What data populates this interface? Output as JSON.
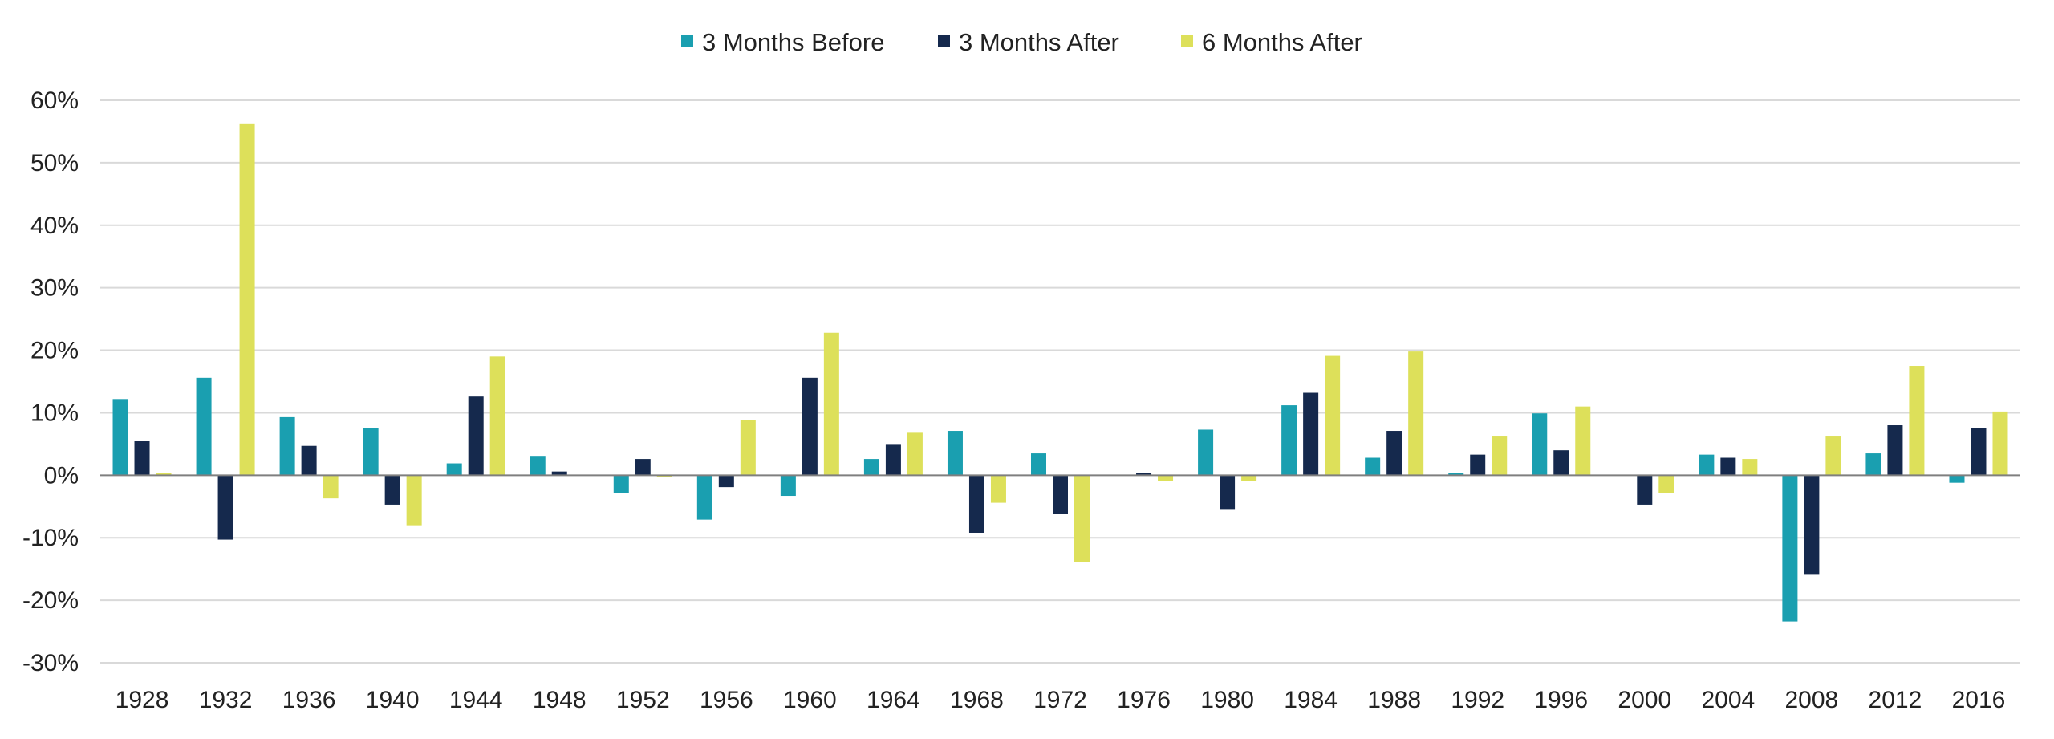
{
  "chart_data": {
    "type": "bar",
    "title": "",
    "xlabel": "",
    "ylabel": "",
    "categories": [
      "1928",
      "1932",
      "1936",
      "1940",
      "1944",
      "1948",
      "1952",
      "1956",
      "1960",
      "1964",
      "1968",
      "1972",
      "1976",
      "1980",
      "1984",
      "1988",
      "1992",
      "1996",
      "2000",
      "2004",
      "2008",
      "2012",
      "2016"
    ],
    "series": [
      {
        "name": "3 Months Before",
        "color": "#1a9fb0",
        "values": [
          12.2,
          15.6,
          9.3,
          7.6,
          1.9,
          3.1,
          -2.8,
          -7.1,
          -3.3,
          2.6,
          7.1,
          3.5,
          0.0,
          7.3,
          11.2,
          2.8,
          0.3,
          9.9,
          0.0,
          3.3,
          -23.4,
          3.5,
          -1.2
        ]
      },
      {
        "name": "3 Months After",
        "color": "#15294d",
        "values": [
          5.5,
          -10.3,
          4.7,
          -4.7,
          12.6,
          0.6,
          2.6,
          -1.9,
          15.6,
          5.0,
          -9.2,
          -6.2,
          0.4,
          -5.4,
          13.2,
          7.1,
          3.3,
          4.0,
          -4.7,
          2.8,
          -15.8,
          8.0,
          7.6
        ]
      },
      {
        "name": "6 Months After",
        "color": "#dde05a",
        "values": [
          0.4,
          56.3,
          -3.7,
          -8.0,
          19.0,
          0.0,
          -0.3,
          8.8,
          22.8,
          6.8,
          -4.4,
          -13.9,
          -0.9,
          -0.9,
          19.1,
          19.8,
          6.2,
          11.0,
          -2.8,
          2.6,
          6.2,
          17.5,
          10.2
        ]
      }
    ],
    "ylim": [
      -30,
      60
    ],
    "yticks": [
      60,
      50,
      40,
      30,
      20,
      10,
      0,
      -10,
      -20,
      -30
    ],
    "ytick_labels": [
      "60%",
      "50%",
      "40%",
      "30%",
      "20%",
      "10%",
      "0%",
      "-10%",
      "-20%",
      "-30%"
    ],
    "grid": true,
    "legend_position": "top-center"
  }
}
